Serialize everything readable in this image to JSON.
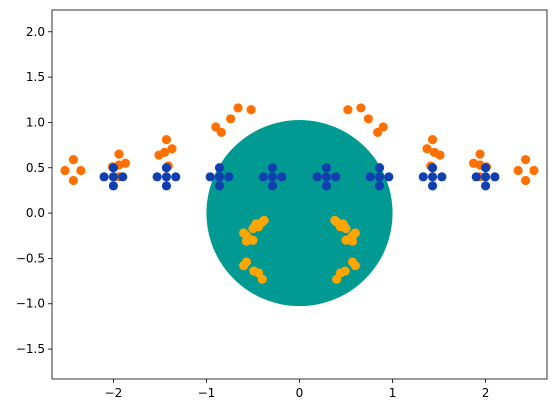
{
  "chart_data": {
    "type": "scatter",
    "title": "",
    "xlabel": "",
    "ylabel": "",
    "xlim": [
      -2.66,
      2.66
    ],
    "ylim": [
      -1.83,
      2.24
    ],
    "xticks": [
      -2,
      -1,
      0,
      1,
      2
    ],
    "yticks": [
      -1.5,
      -1.0,
      -0.5,
      0.0,
      0.5,
      1.0,
      1.5,
      2.0
    ],
    "xtick_labels": [
      "−2",
      "−1",
      "0",
      "1",
      "2"
    ],
    "ytick_labels": [
      "−1.5",
      "−1.0",
      "−0.5",
      "0.0",
      "0.5",
      "1.0",
      "1.5",
      "2.0"
    ],
    "grid": false,
    "legend": "none",
    "circle": {
      "cx": 0.0,
      "cy": 0.0,
      "r": 1.0,
      "color": "#009a92"
    },
    "series": [
      {
        "color": "#ff7000",
        "points": [
          [
            -2.52,
            0.47
          ],
          [
            -2.43,
            0.59
          ],
          [
            -2.43,
            0.36
          ],
          [
            -2.35,
            0.47
          ],
          [
            -2.01,
            0.51
          ],
          [
            -1.94,
            0.65
          ],
          [
            -1.94,
            0.53
          ],
          [
            -1.94,
            0.4
          ],
          [
            -1.87,
            0.55
          ],
          [
            -1.51,
            0.64
          ],
          [
            -1.45,
            0.67
          ],
          [
            -1.43,
            0.81
          ],
          [
            -1.41,
            0.52
          ],
          [
            -1.37,
            0.71
          ],
          [
            -0.9,
            0.95
          ],
          [
            -0.84,
            0.89
          ],
          [
            -0.74,
            1.04
          ],
          [
            -0.66,
            1.16
          ],
          [
            -0.52,
            1.14
          ],
          [
            0.52,
            1.14
          ],
          [
            0.66,
            1.16
          ],
          [
            0.74,
            1.04
          ],
          [
            0.84,
            0.89
          ],
          [
            0.9,
            0.95
          ],
          [
            1.37,
            0.71
          ],
          [
            1.41,
            0.52
          ],
          [
            1.43,
            0.81
          ],
          [
            1.45,
            0.67
          ],
          [
            1.51,
            0.64
          ],
          [
            1.87,
            0.55
          ],
          [
            1.94,
            0.4
          ],
          [
            1.94,
            0.53
          ],
          [
            1.94,
            0.65
          ],
          [
            2.01,
            0.51
          ],
          [
            2.35,
            0.47
          ],
          [
            2.43,
            0.36
          ],
          [
            2.43,
            0.59
          ],
          [
            2.52,
            0.47
          ]
        ]
      },
      {
        "color": "#ffa500",
        "points": [
          [
            -0.6,
            -0.58
          ],
          [
            -0.57,
            -0.54
          ],
          [
            -0.49,
            -0.64
          ],
          [
            -0.44,
            -0.66
          ],
          [
            -0.4,
            -0.73
          ],
          [
            -0.6,
            -0.22
          ],
          [
            -0.57,
            -0.25
          ],
          [
            -0.57,
            -0.31
          ],
          [
            -0.54,
            -0.29
          ],
          [
            -0.5,
            -0.3
          ],
          [
            -0.5,
            -0.17
          ],
          [
            -0.47,
            -0.12
          ],
          [
            -0.44,
            -0.15
          ],
          [
            -0.4,
            -0.1
          ],
          [
            -0.38,
            -0.08
          ],
          [
            0.4,
            -0.73
          ],
          [
            0.44,
            -0.66
          ],
          [
            0.49,
            -0.64
          ],
          [
            0.57,
            -0.54
          ],
          [
            0.6,
            -0.58
          ],
          [
            0.5,
            -0.3
          ],
          [
            0.54,
            -0.29
          ],
          [
            0.57,
            -0.25
          ],
          [
            0.57,
            -0.31
          ],
          [
            0.6,
            -0.22
          ],
          [
            0.38,
            -0.08
          ],
          [
            0.4,
            -0.1
          ],
          [
            0.44,
            -0.15
          ],
          [
            0.47,
            -0.12
          ],
          [
            0.5,
            -0.17
          ]
        ]
      },
      {
        "color": "#1040b0",
        "points": [
          [
            -2.0,
            0.5
          ],
          [
            -2.0,
            0.3
          ],
          [
            -2.1,
            0.4
          ],
          [
            -1.9,
            0.4
          ],
          [
            -2.0,
            0.4
          ],
          [
            -1.43,
            0.5
          ],
          [
            -1.43,
            0.3
          ],
          [
            -1.53,
            0.4
          ],
          [
            -1.33,
            0.4
          ],
          [
            -1.43,
            0.4
          ],
          [
            -0.86,
            0.5
          ],
          [
            -0.86,
            0.3
          ],
          [
            -0.96,
            0.4
          ],
          [
            -0.76,
            0.4
          ],
          [
            -0.86,
            0.4
          ],
          [
            -0.29,
            0.5
          ],
          [
            -0.29,
            0.3
          ],
          [
            -0.39,
            0.4
          ],
          [
            -0.19,
            0.4
          ],
          [
            -0.29,
            0.4
          ],
          [
            0.29,
            0.5
          ],
          [
            0.29,
            0.3
          ],
          [
            0.19,
            0.4
          ],
          [
            0.39,
            0.4
          ],
          [
            0.29,
            0.4
          ],
          [
            0.86,
            0.5
          ],
          [
            0.86,
            0.3
          ],
          [
            0.76,
            0.4
          ],
          [
            0.96,
            0.4
          ],
          [
            0.86,
            0.4
          ],
          [
            1.43,
            0.5
          ],
          [
            1.43,
            0.3
          ],
          [
            1.33,
            0.4
          ],
          [
            1.53,
            0.4
          ],
          [
            1.43,
            0.4
          ],
          [
            2.0,
            0.5
          ],
          [
            2.0,
            0.3
          ],
          [
            1.9,
            0.4
          ],
          [
            2.1,
            0.4
          ],
          [
            2.0,
            0.4
          ]
        ]
      }
    ]
  }
}
